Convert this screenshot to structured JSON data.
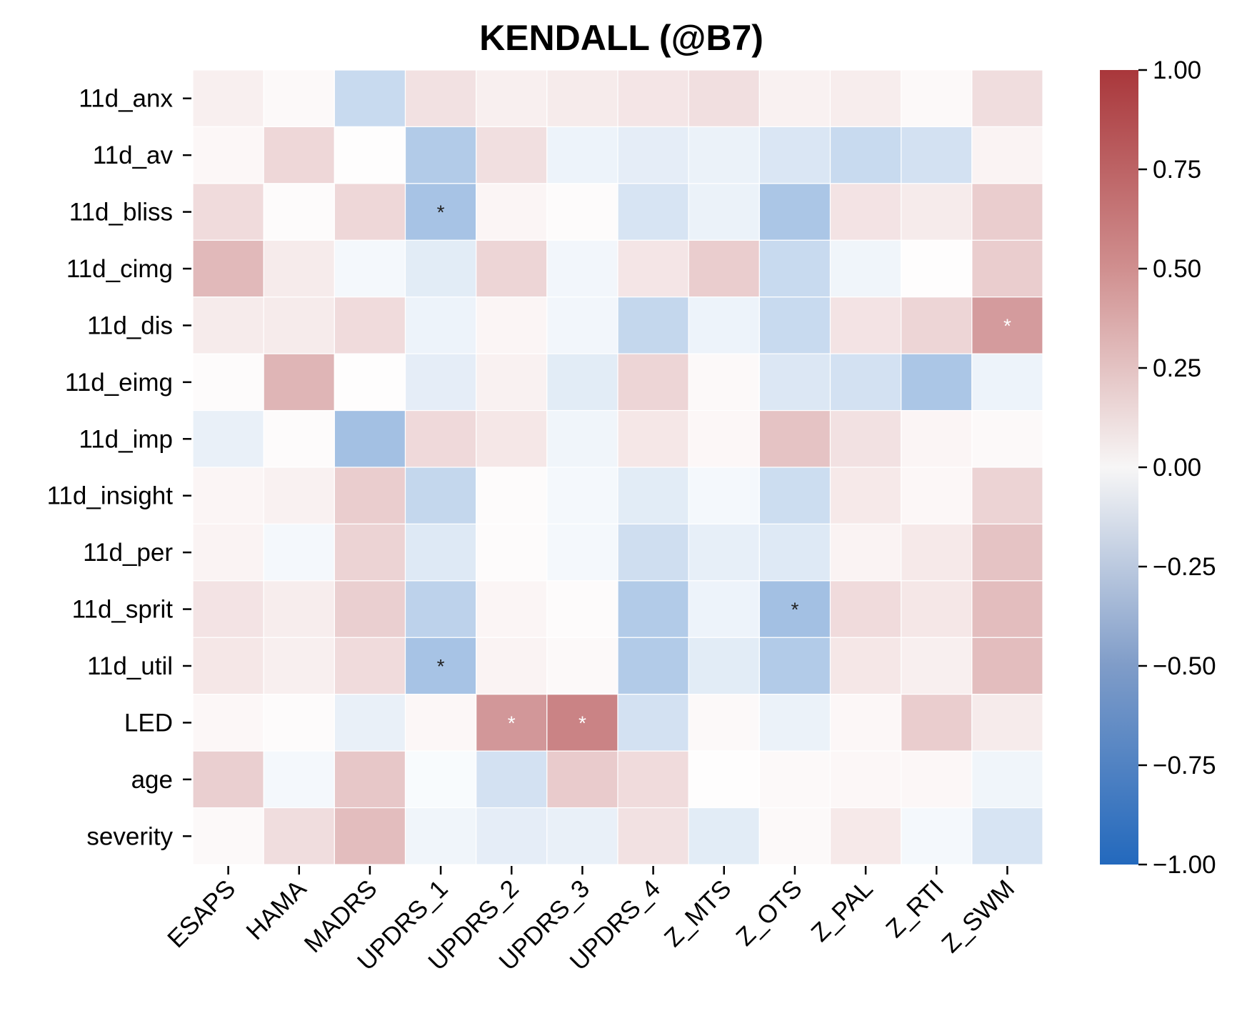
{
  "chart_data": {
    "type": "heatmap",
    "title": "KENDALL (@B7)",
    "xlabel": "",
    "ylabel": "",
    "x_categories": [
      "ESAPS",
      "HAMA",
      "MADRS",
      "UPDRS_1",
      "UPDRS_2",
      "UPDRS_3",
      "UPDRS_4",
      "Z_MTS",
      "Z_OTS",
      "Z_PAL",
      "Z_RTI",
      "Z_SWM"
    ],
    "y_categories": [
      "11d_anx",
      "11d_av",
      "11d_bliss",
      "11d_cimg",
      "11d_dis",
      "11d_eimg",
      "11d_imp",
      "11d_insight",
      "11d_per",
      "11d_sprit",
      "11d_util",
      "LED",
      "age",
      "severity"
    ],
    "values": [
      [
        0.08,
        0.03,
        -0.25,
        0.15,
        0.08,
        0.1,
        0.13,
        0.16,
        0.07,
        0.09,
        0.03,
        0.17
      ],
      [
        0.04,
        0.2,
        0.01,
        -0.35,
        0.16,
        -0.08,
        -0.12,
        -0.09,
        -0.17,
        -0.25,
        -0.2,
        0.06
      ],
      [
        0.18,
        0.02,
        0.2,
        -0.4,
        0.05,
        0.02,
        -0.18,
        -0.09,
        -0.38,
        0.14,
        0.1,
        0.25
      ],
      [
        0.35,
        0.1,
        -0.05,
        -0.13,
        0.21,
        -0.06,
        0.13,
        0.25,
        -0.25,
        -0.07,
        0.01,
        0.25
      ],
      [
        0.1,
        0.1,
        0.18,
        -0.08,
        0.05,
        -0.06,
        -0.27,
        -0.08,
        -0.25,
        0.14,
        0.21,
        0.5
      ],
      [
        0.02,
        0.37,
        0.01,
        -0.12,
        0.07,
        -0.13,
        0.21,
        0.03,
        -0.16,
        -0.2,
        -0.38,
        -0.08
      ],
      [
        -0.1,
        0.02,
        -0.42,
        0.19,
        0.12,
        -0.07,
        0.12,
        0.04,
        0.3,
        0.15,
        0.05,
        0.03
      ],
      [
        0.05,
        0.07,
        0.25,
        -0.27,
        0.02,
        -0.05,
        -0.13,
        -0.05,
        -0.23,
        0.11,
        0.04,
        0.22
      ],
      [
        0.06,
        -0.05,
        0.22,
        -0.15,
        0.02,
        -0.05,
        -0.22,
        -0.11,
        -0.15,
        0.06,
        0.11,
        0.3
      ],
      [
        0.14,
        0.09,
        0.24,
        -0.3,
        0.05,
        0.02,
        -0.35,
        -0.08,
        -0.42,
        0.18,
        0.12,
        0.33
      ],
      [
        0.12,
        0.08,
        0.18,
        -0.4,
        0.06,
        0.03,
        -0.35,
        -0.13,
        -0.35,
        0.12,
        0.08,
        0.33
      ],
      [
        0.04,
        0.02,
        -0.1,
        0.04,
        0.52,
        0.62,
        -0.2,
        0.03,
        -0.09,
        0.04,
        0.25,
        0.1
      ],
      [
        0.24,
        -0.05,
        0.28,
        -0.03,
        -0.2,
        0.26,
        0.18,
        0.01,
        0.03,
        0.04,
        0.04,
        -0.07
      ],
      [
        0.03,
        0.17,
        0.33,
        -0.07,
        -0.12,
        -0.1,
        0.15,
        -0.13,
        0.03,
        0.11,
        -0.05,
        -0.18
      ]
    ],
    "significance_marks": [
      {
        "row": "11d_bliss",
        "col": "UPDRS_1",
        "mark": "*"
      },
      {
        "row": "11d_dis",
        "col": "Z_SWM",
        "mark": "*"
      },
      {
        "row": "11d_sprit",
        "col": "Z_OTS",
        "mark": "*"
      },
      {
        "row": "11d_util",
        "col": "UPDRS_1",
        "mark": "*"
      },
      {
        "row": "LED",
        "col": "UPDRS_2",
        "mark": "*"
      },
      {
        "row": "LED",
        "col": "UPDRS_3",
        "mark": "*"
      }
    ],
    "colormap": {
      "name": "vlag",
      "vmin": -1.0,
      "vmax": 1.0,
      "low_color": "#2369bd",
      "mid_color": "#ffffff",
      "high_color": "#a9373b"
    },
    "colorbar_ticks": [
      "1.00",
      "0.75",
      "0.50",
      "0.25",
      "0.00",
      "−0.25",
      "−0.50",
      "−0.75",
      "−1.00"
    ],
    "colorbar_tick_values": [
      1.0,
      0.75,
      0.5,
      0.25,
      0.0,
      -0.25,
      -0.5,
      -0.75,
      -1.0
    ],
    "grid": false,
    "legend": "colorbar-right"
  }
}
